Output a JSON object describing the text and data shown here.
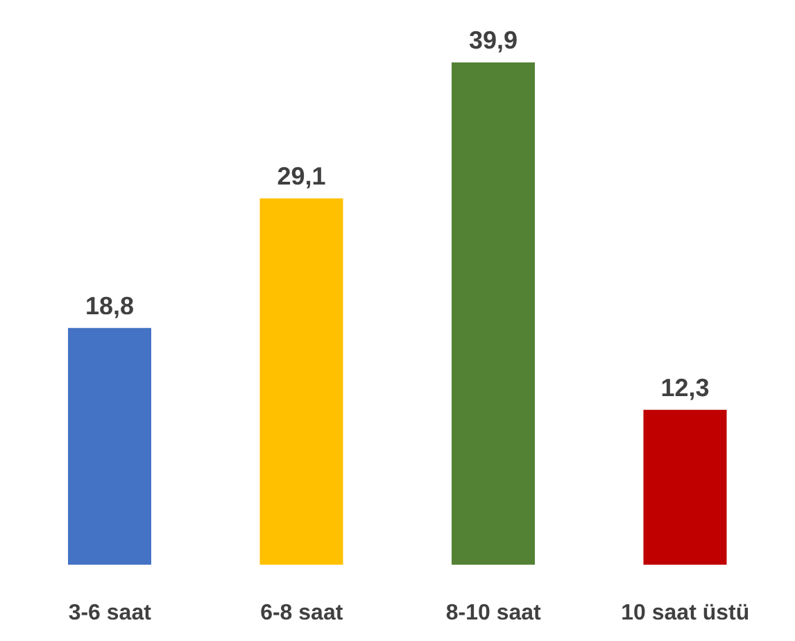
{
  "chart_data": {
    "type": "bar",
    "categories": [
      "3-6 saat",
      "6-8 saat",
      "8-10 saat",
      "10 saat üstü"
    ],
    "values": [
      18.8,
      29.1,
      39.9,
      12.3
    ],
    "colors": [
      "#4472c4",
      "#ffc000",
      "#548235",
      "#c00000"
    ],
    "value_labels": [
      "18,8",
      "29,1",
      "39,9",
      "12,3"
    ]
  }
}
